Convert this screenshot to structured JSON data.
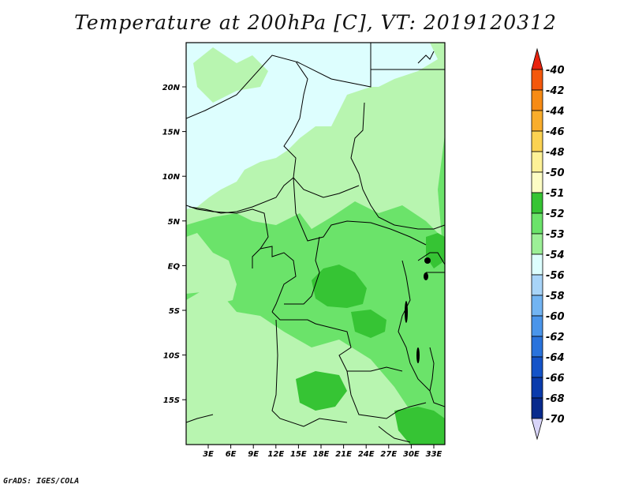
{
  "title": "Temperature at 200hPa [C], VT: 2019120312",
  "credit": "GrADS: IGES/COLA",
  "map": {
    "lat_labels": [
      "20N",
      "15N",
      "10N",
      "5N",
      "EQ",
      "5S",
      "10S",
      "15S"
    ],
    "lon_labels": [
      "3E",
      "6E",
      "9E",
      "12E",
      "15E",
      "18E",
      "21E",
      "24E",
      "27E",
      "30E",
      "33E"
    ]
  },
  "colorbar": {
    "labels": [
      "-40",
      "-42",
      "-44",
      "-46",
      "-48",
      "-50",
      "-51",
      "-52",
      "-53",
      "-54",
      "-56",
      "-58",
      "-60",
      "-62",
      "-64",
      "-66",
      "-68",
      "-70"
    ],
    "colors": [
      "#e8230e",
      "#f4580c",
      "#f78b14",
      "#f9ad2c",
      "#fbd252",
      "#fdf197",
      "#fcfcc4",
      "#36c434",
      "#6be36a",
      "#9cef97",
      "#ddfefe",
      "#a8d4f8",
      "#72b4f2",
      "#4a95ea",
      "#2a73dc",
      "#1453c8",
      "#0a3bac",
      "#082a8c",
      "#0a0f6a",
      "#d8d4f8"
    ]
  },
  "colors": {
    "c51": "#36c434",
    "c52": "#6be36a",
    "c53": "#b8f5b0",
    "c54": "#ddfefe"
  }
}
